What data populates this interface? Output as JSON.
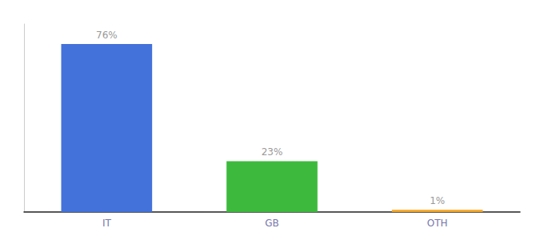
{
  "chart_data": {
    "type": "bar",
    "categories": [
      "IT",
      "GB",
      "OTH"
    ],
    "values": [
      76,
      23,
      1
    ],
    "value_labels": [
      "76%",
      "23%",
      "1%"
    ],
    "colors": [
      "#4472db",
      "#3dba3d",
      "#f5a623"
    ],
    "ylim": [
      0,
      85
    ],
    "grid": false,
    "data_labels": true,
    "tick_labels": "x"
  }
}
